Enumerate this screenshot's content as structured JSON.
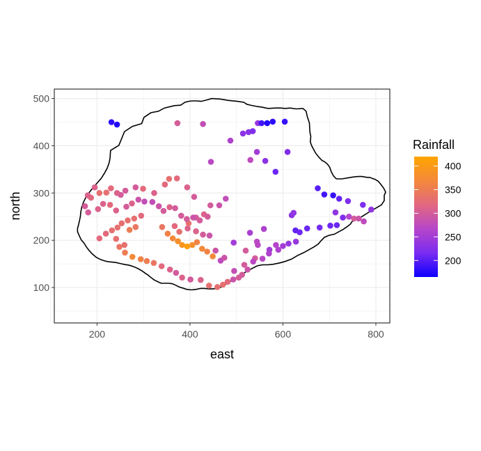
{
  "chart_data": {
    "type": "scatter",
    "xlabel": "east",
    "ylabel": "north",
    "xlim": [
      108,
      830
    ],
    "ylim": [
      25,
      520
    ],
    "x_ticks": [
      200,
      400,
      600,
      800
    ],
    "y_ticks": [
      100,
      200,
      300,
      400,
      500
    ],
    "x_tick_labels": [
      "200",
      "400",
      "600",
      "800"
    ],
    "y_tick_labels": [
      "100",
      "200",
      "300",
      "400",
      "500"
    ],
    "grid": true,
    "legend": {
      "title": "Rainfall",
      "position": "right",
      "min": 165,
      "max": 420,
      "ticks": [
        200,
        250,
        300,
        350,
        400
      ],
      "tick_labels": [
        "200",
        "250",
        "300",
        "350",
        "400"
      ],
      "colors": [
        "#0d00ff",
        "#7a2cf0",
        "#b746c9",
        "#e26880",
        "#f3893a",
        "#ffa500"
      ]
    },
    "border": [
      [
        229,
        390
      ],
      [
        247,
        401
      ],
      [
        259,
        430
      ],
      [
        276,
        441
      ],
      [
        296,
        447
      ],
      [
        301,
        460
      ],
      [
        316,
        470
      ],
      [
        332,
        473
      ],
      [
        345,
        480
      ],
      [
        366,
        485
      ],
      [
        380,
        486
      ],
      [
        389,
        492
      ],
      [
        397,
        494
      ],
      [
        404,
        495
      ],
      [
        415,
        495
      ],
      [
        424,
        494
      ],
      [
        436,
        497
      ],
      [
        447,
        500
      ],
      [
        465,
        499
      ],
      [
        483,
        496
      ],
      [
        502,
        494
      ],
      [
        516,
        492
      ],
      [
        522,
        488
      ],
      [
        530,
        486
      ],
      [
        545,
        483
      ],
      [
        554,
        482
      ],
      [
        568,
        479
      ],
      [
        585,
        480
      ],
      [
        595,
        480
      ],
      [
        605,
        479
      ],
      [
        615,
        480
      ],
      [
        629,
        478
      ],
      [
        643,
        479
      ],
      [
        650,
        473
      ],
      [
        652,
        463
      ],
      [
        657,
        448
      ],
      [
        658,
        429
      ],
      [
        660,
        420
      ],
      [
        659,
        408
      ],
      [
        662,
        400
      ],
      [
        670,
        385
      ],
      [
        677,
        376
      ],
      [
        684,
        369
      ],
      [
        690,
        366
      ],
      [
        696,
        361
      ],
      [
        701,
        354
      ],
      [
        704,
        345
      ],
      [
        709,
        336
      ],
      [
        715,
        330
      ],
      [
        727,
        330
      ],
      [
        740,
        332
      ],
      [
        751,
        334
      ],
      [
        762,
        335
      ],
      [
        770,
        335
      ],
      [
        782,
        333
      ],
      [
        787,
        333
      ],
      [
        792,
        331
      ],
      [
        798,
        329
      ],
      [
        805,
        325
      ],
      [
        811,
        318
      ],
      [
        817,
        310
      ],
      [
        821,
        302
      ],
      [
        818,
        295
      ],
      [
        818,
        284
      ],
      [
        812,
        275
      ],
      [
        800,
        268
      ],
      [
        789,
        262
      ],
      [
        781,
        257
      ],
      [
        773,
        252
      ],
      [
        765,
        247
      ],
      [
        756,
        243
      ],
      [
        749,
        240
      ],
      [
        745,
        234
      ],
      [
        737,
        228
      ],
      [
        728,
        222
      ],
      [
        722,
        219
      ],
      [
        711,
        213
      ],
      [
        698,
        210
      ],
      [
        689,
        206
      ],
      [
        682,
        199
      ],
      [
        676,
        192
      ],
      [
        667,
        186
      ],
      [
        656,
        180
      ],
      [
        645,
        174
      ],
      [
        632,
        168
      ],
      [
        618,
        160
      ],
      [
        604,
        155
      ],
      [
        593,
        152
      ],
      [
        578,
        149
      ],
      [
        567,
        148
      ],
      [
        556,
        148
      ],
      [
        545,
        146
      ],
      [
        533,
        140
      ],
      [
        522,
        134
      ],
      [
        510,
        127
      ],
      [
        499,
        120
      ],
      [
        486,
        112
      ],
      [
        479,
        108
      ],
      [
        473,
        104
      ],
      [
        467,
        101
      ],
      [
        460,
        98
      ],
      [
        450,
        97
      ],
      [
        441,
        97
      ],
      [
        432,
        98
      ],
      [
        423,
        98
      ],
      [
        413,
        96
      ],
      [
        403,
        95
      ],
      [
        393,
        96
      ],
      [
        384,
        99
      ],
      [
        377,
        101
      ],
      [
        369,
        105
      ],
      [
        362,
        108
      ],
      [
        354,
        109
      ],
      [
        346,
        109
      ],
      [
        338,
        109
      ],
      [
        331,
        112
      ],
      [
        323,
        116
      ],
      [
        316,
        121
      ],
      [
        310,
        126
      ],
      [
        304,
        130
      ],
      [
        297,
        135
      ],
      [
        288,
        140
      ],
      [
        279,
        144
      ],
      [
        270,
        147
      ],
      [
        258,
        149
      ],
      [
        249,
        151
      ],
      [
        240,
        153
      ],
      [
        230,
        154
      ],
      [
        222,
        155
      ],
      [
        214,
        157
      ],
      [
        206,
        160
      ],
      [
        198,
        164
      ],
      [
        190,
        171
      ],
      [
        183,
        178
      ],
      [
        177,
        186
      ],
      [
        172,
        194
      ],
      [
        166,
        201
      ],
      [
        162,
        209
      ],
      [
        158,
        218
      ],
      [
        158,
        225
      ],
      [
        160,
        232
      ],
      [
        162,
        240
      ],
      [
        164,
        250
      ],
      [
        165,
        260
      ],
      [
        167,
        270
      ],
      [
        171,
        281
      ],
      [
        176,
        291
      ],
      [
        183,
        301
      ],
      [
        191,
        311
      ],
      [
        200,
        321
      ],
      [
        209,
        331
      ],
      [
        216,
        342
      ],
      [
        222,
        353
      ],
      [
        226,
        364
      ],
      [
        228,
        374
      ],
      [
        229,
        390
      ]
    ],
    "points": [
      [
        231,
        450,
        180
      ],
      [
        243,
        445,
        175
      ],
      [
        373,
        448,
        300
      ],
      [
        428,
        446,
        280
      ],
      [
        546,
        448,
        240
      ],
      [
        554,
        448,
        190
      ],
      [
        566,
        448,
        175
      ],
      [
        578,
        451,
        180
      ],
      [
        604,
        451,
        185
      ],
      [
        610,
        387,
        220
      ],
      [
        514,
        426,
        230
      ],
      [
        526,
        429,
        230
      ],
      [
        535,
        431,
        220
      ],
      [
        487,
        411,
        260
      ],
      [
        544,
        387,
        250
      ],
      [
        445,
        366,
        270
      ],
      [
        530,
        370,
        275
      ],
      [
        562,
        368,
        230
      ],
      [
        584,
        345,
        210
      ],
      [
        675,
        310,
        200
      ],
      [
        689,
        297,
        190
      ],
      [
        708,
        295,
        185
      ],
      [
        721,
        288,
        205
      ],
      [
        740,
        283,
        220
      ],
      [
        772,
        275,
        220
      ],
      [
        790,
        265,
        235
      ],
      [
        729,
        248,
        220
      ],
      [
        713,
        259,
        235
      ],
      [
        679,
        227,
        215
      ],
      [
        702,
        231,
        210
      ],
      [
        716,
        232,
        210
      ],
      [
        742,
        250,
        265
      ],
      [
        753,
        246,
        300
      ],
      [
        763,
        246,
        290
      ],
      [
        774,
        240,
        275
      ],
      [
        627,
        221,
        205
      ],
      [
        636,
        217,
        210
      ],
      [
        652,
        225,
        210
      ],
      [
        619,
        253,
        230
      ],
      [
        623,
        258,
        235
      ],
      [
        559,
        224,
        260
      ],
      [
        529,
        216,
        255
      ],
      [
        544,
        197,
        270
      ],
      [
        546,
        190,
        270
      ],
      [
        571,
        180,
        250
      ],
      [
        585,
        190,
        265
      ],
      [
        540,
        162,
        300
      ],
      [
        520,
        178,
        300
      ],
      [
        494,
        195,
        250
      ],
      [
        517,
        148,
        300
      ],
      [
        495,
        135,
        280
      ],
      [
        466,
        157,
        275
      ],
      [
        474,
        163,
        290
      ],
      [
        455,
        178,
        290
      ],
      [
        442,
        210,
        290
      ],
      [
        428,
        212,
        300
      ],
      [
        413,
        219,
        310
      ],
      [
        395,
        225,
        310
      ],
      [
        367,
        230,
        320
      ],
      [
        377,
        218,
        330
      ],
      [
        397,
        236,
        330
      ],
      [
        413,
        248,
        300
      ],
      [
        430,
        255,
        310
      ],
      [
        444,
        274,
        300
      ],
      [
        463,
        274,
        290
      ],
      [
        477,
        288,
        280
      ],
      [
        409,
        292,
        300
      ],
      [
        394,
        312,
        310
      ],
      [
        372,
        331,
        320
      ],
      [
        355,
        330,
        330
      ],
      [
        346,
        318,
        320
      ],
      [
        323,
        300,
        310
      ],
      [
        299,
        309,
        320
      ],
      [
        283,
        312,
        300
      ],
      [
        261,
        305,
        300
      ],
      [
        251,
        296,
        300
      ],
      [
        243,
        300,
        310
      ],
      [
        230,
        310,
        320
      ],
      [
        220,
        301,
        330
      ],
      [
        205,
        300,
        330
      ],
      [
        195,
        312,
        310
      ],
      [
        187,
        290,
        320
      ],
      [
        180,
        295,
        310
      ],
      [
        174,
        272,
        300
      ],
      [
        181,
        259,
        300
      ],
      [
        202,
        266,
        310
      ],
      [
        213,
        277,
        310
      ],
      [
        228,
        275,
        320
      ],
      [
        241,
        263,
        310
      ],
      [
        263,
        271,
        300
      ],
      [
        275,
        278,
        310
      ],
      [
        289,
        286,
        290
      ],
      [
        302,
        282,
        280
      ],
      [
        319,
        281,
        280
      ],
      [
        333,
        272,
        290
      ],
      [
        343,
        262,
        300
      ],
      [
        356,
        270,
        310
      ],
      [
        368,
        268,
        300
      ],
      [
        381,
        252,
        300
      ],
      [
        393,
        245,
        300
      ],
      [
        407,
        248,
        290
      ],
      [
        421,
        242,
        300
      ],
      [
        438,
        250,
        300
      ],
      [
        241,
        203,
        330
      ],
      [
        259,
        190,
        330
      ],
      [
        248,
        186,
        340
      ],
      [
        260,
        174,
        350
      ],
      [
        276,
        165,
        370
      ],
      [
        294,
        160,
        360
      ],
      [
        307,
        156,
        350
      ],
      [
        322,
        152,
        340
      ],
      [
        339,
        145,
        320
      ],
      [
        357,
        138,
        310
      ],
      [
        370,
        131,
        300
      ],
      [
        383,
        121,
        310
      ],
      [
        401,
        117,
        300
      ],
      [
        423,
        116,
        310
      ],
      [
        441,
        104,
        330
      ],
      [
        459,
        101,
        330
      ],
      [
        471,
        106,
        330
      ],
      [
        481,
        112,
        320
      ],
      [
        493,
        117,
        290
      ],
      [
        505,
        121,
        300
      ],
      [
        512,
        127,
        300
      ],
      [
        524,
        138,
        290
      ],
      [
        536,
        155,
        270
      ],
      [
        556,
        161,
        270
      ],
      [
        570,
        172,
        260
      ],
      [
        590,
        180,
        260
      ],
      [
        600,
        188,
        250
      ],
      [
        612,
        193,
        240
      ],
      [
        628,
        197,
        240
      ],
      [
        340,
        228,
        340
      ],
      [
        352,
        214,
        360
      ],
      [
        363,
        204,
        370
      ],
      [
        374,
        198,
        380
      ],
      [
        383,
        190,
        390
      ],
      [
        394,
        187,
        410
      ],
      [
        405,
        190,
        380
      ],
      [
        415,
        196,
        360
      ],
      [
        426,
        182,
        370
      ],
      [
        437,
        176,
        360
      ],
      [
        449,
        166,
        370
      ],
      [
        244,
        227,
        330
      ],
      [
        253,
        236,
        330
      ],
      [
        266,
        242,
        330
      ],
      [
        280,
        246,
        330
      ],
      [
        295,
        252,
        320
      ],
      [
        270,
        222,
        350
      ],
      [
        283,
        228,
        340
      ],
      [
        205,
        204,
        320
      ],
      [
        219,
        214,
        320
      ],
      [
        232,
        221,
        330
      ]
    ]
  }
}
